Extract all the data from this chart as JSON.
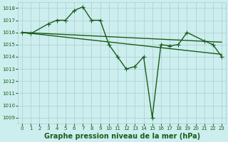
{
  "bg_color": "#cceeee",
  "grid_color": "#aacccc",
  "line_color": "#1a5c1a",
  "title": "Graphe pression niveau de la mer (hPa)",
  "xlim": [
    -0.5,
    23.5
  ],
  "ylim": [
    1008.5,
    1018.5
  ],
  "yticks": [
    1009,
    1010,
    1011,
    1012,
    1013,
    1014,
    1015,
    1016,
    1017,
    1018
  ],
  "xticks": [
    0,
    1,
    2,
    3,
    4,
    5,
    6,
    7,
    8,
    9,
    10,
    11,
    12,
    13,
    14,
    15,
    16,
    17,
    18,
    19,
    20,
    21,
    22,
    23
  ],
  "line1_x": [
    0,
    1,
    3,
    4,
    5,
    6,
    7,
    8,
    9,
    10,
    11,
    12,
    13,
    14,
    15,
    16,
    17,
    18,
    19,
    21,
    22,
    23
  ],
  "line1_y": [
    1016.0,
    1015.9,
    1016.7,
    1017.0,
    1017.0,
    1017.8,
    1018.1,
    1017.0,
    1017.0,
    1015.0,
    1014.0,
    1013.0,
    1013.2,
    1014.0,
    1009.0,
    1015.0,
    1014.9,
    1015.0,
    1016.0,
    1015.3,
    1015.0,
    1014.0
  ],
  "line2_x": [
    0,
    23
  ],
  "line2_y": [
    1016.0,
    1015.2
  ],
  "line3_x": [
    0,
    23
  ],
  "line3_y": [
    1016.0,
    1014.2
  ],
  "marker": "+",
  "markersize": 4,
  "linewidth": 1.0,
  "title_fontsize": 7,
  "tick_fontsize": 5
}
